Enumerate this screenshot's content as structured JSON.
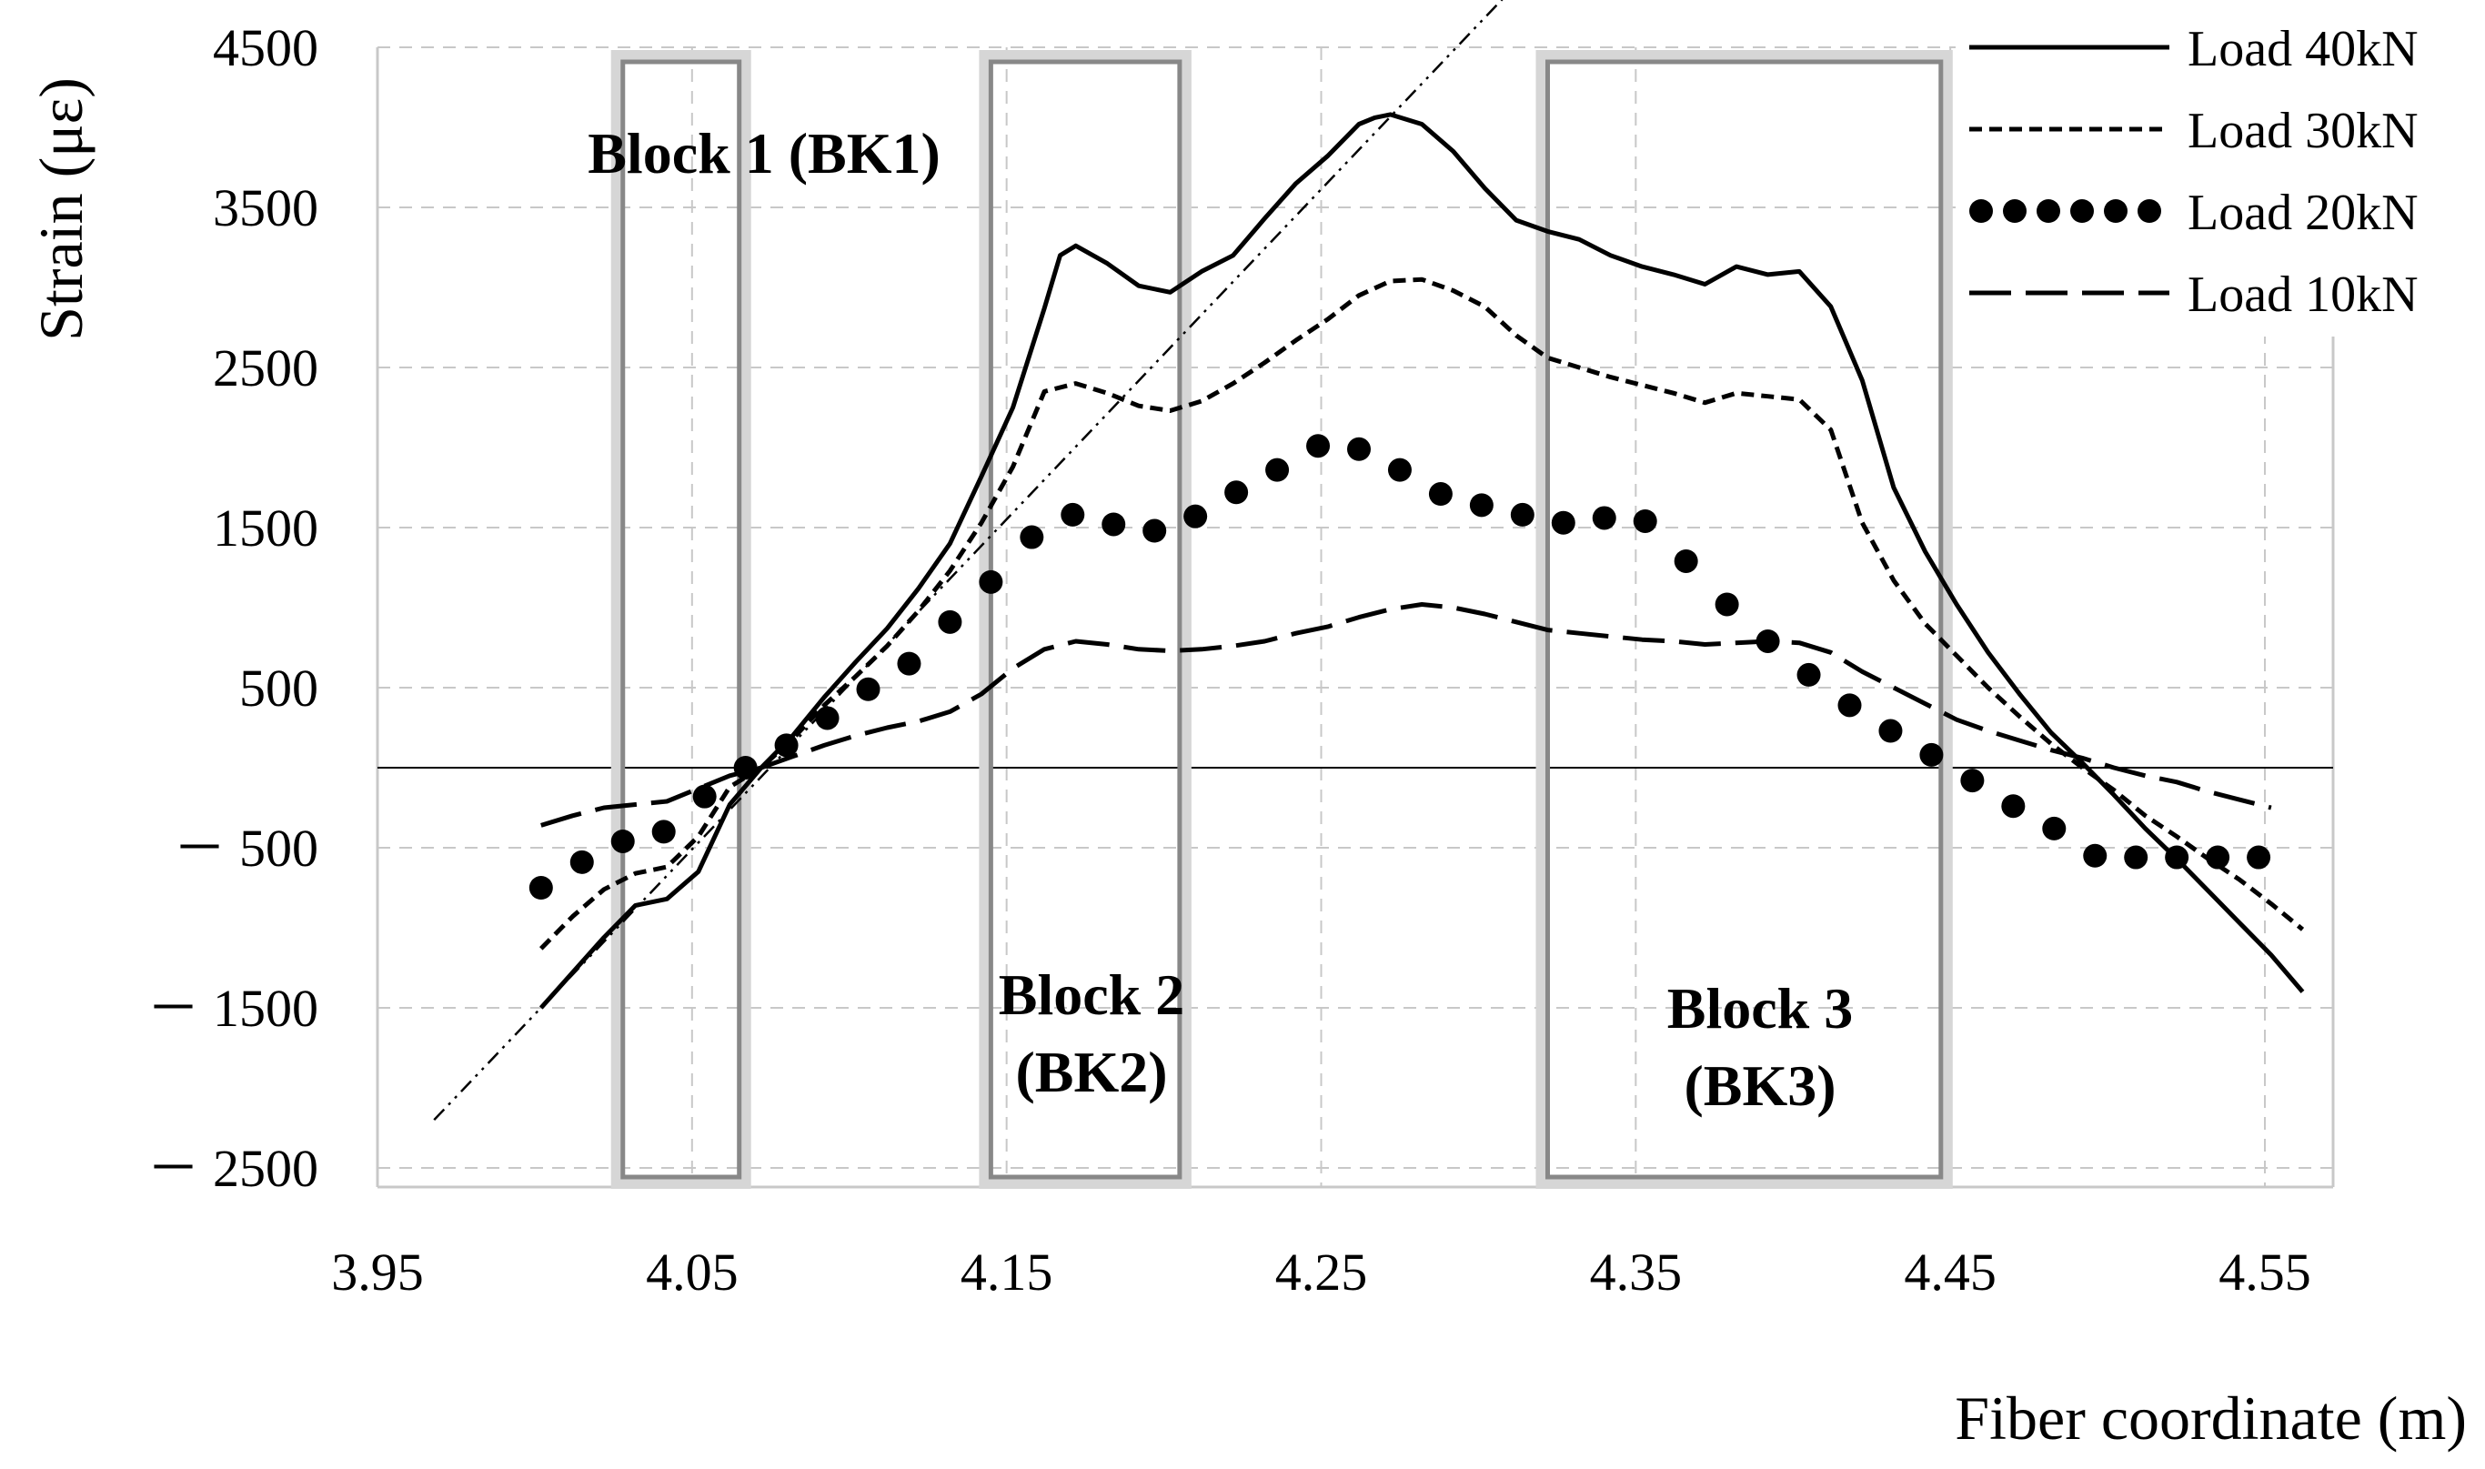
{
  "chart_data": {
    "type": "line",
    "title": "",
    "xlabel": "Fiber coordinate (m)",
    "ylabel": "Strain (με)",
    "xlim": [
      3.95,
      4.57
    ],
    "ylim": [
      -2600,
      4500
    ],
    "x_ticks": [
      "3.95",
      "4.05",
      "4.15",
      "4.25",
      "4.35",
      "4.45",
      "4.55"
    ],
    "x_tick_values": [
      3.95,
      4.05,
      4.15,
      4.25,
      4.35,
      4.45,
      4.55
    ],
    "y_ticks": [
      "4500",
      "3500",
      "2500",
      "1500",
      "500",
      "－ 500",
      "－ 1500",
      "－ 2500"
    ],
    "y_tick_values": [
      4500,
      3500,
      2500,
      1500,
      500,
      -500,
      -1500,
      -2500
    ],
    "grid": true,
    "legend_position": "top-right",
    "colors": {
      "lines": "#000000",
      "grid": "#c8c8c8",
      "axis": "#c8c8c8",
      "block_frame": "#888888"
    },
    "blocks": [
      {
        "label_lines": [
          "Block 1 (BK1)"
        ],
        "x_start": 4.028,
        "x_end": 4.065
      },
      {
        "label_lines": [
          "Block 2",
          "(BK2)"
        ],
        "x_start": 4.145,
        "x_end": 4.205
      },
      {
        "label_lines": [
          "Block 3",
          "(BK3)"
        ],
        "x_start": 4.322,
        "x_end": 4.447
      }
    ],
    "trend_line": {
      "style": "dash-dot",
      "points": [
        [
          3.968,
          -2200
        ],
        [
          4.31,
          4850
        ]
      ]
    },
    "series": [
      {
        "name": "Load 40kN",
        "style": "solid",
        "x": [
          4.002,
          4.012,
          4.022,
          4.032,
          4.042,
          4.052,
          4.062,
          4.072,
          4.082,
          4.092,
          4.102,
          4.112,
          4.122,
          4.132,
          4.142,
          4.152,
          4.162,
          4.167,
          4.172,
          4.182,
          4.192,
          4.202,
          4.212,
          4.222,
          4.232,
          4.242,
          4.252,
          4.262,
          4.267,
          4.272,
          4.282,
          4.292,
          4.302,
          4.312,
          4.322,
          4.332,
          4.342,
          4.352,
          4.362,
          4.372,
          4.382,
          4.392,
          4.402,
          4.412,
          4.422,
          4.432,
          4.442,
          4.452,
          4.462,
          4.472,
          4.482,
          4.492,
          4.502,
          4.512,
          4.522,
          4.532,
          4.542,
          4.552,
          4.562
        ],
        "y": [
          -1500,
          -1280,
          -1060,
          -860,
          -820,
          -650,
          -230,
          0,
          200,
          440,
          660,
          870,
          1120,
          1400,
          1820,
          2250,
          2870,
          3200,
          3260,
          3150,
          3010,
          2970,
          3100,
          3200,
          3430,
          3650,
          3820,
          4020,
          4060,
          4080,
          4020,
          3850,
          3620,
          3420,
          3350,
          3300,
          3200,
          3130,
          3080,
          3020,
          3130,
          3080,
          3100,
          2880,
          2420,
          1750,
          1350,
          1020,
          720,
          460,
          220,
          30,
          -170,
          -380,
          -570,
          -770,
          -970,
          -1170,
          -1400
        ]
      },
      {
        "name": "Load 30kN",
        "style": "short-dash",
        "x": [
          4.002,
          4.012,
          4.022,
          4.032,
          4.042,
          4.052,
          4.062,
          4.072,
          4.082,
          4.092,
          4.102,
          4.112,
          4.122,
          4.132,
          4.142,
          4.152,
          4.162,
          4.172,
          4.182,
          4.192,
          4.202,
          4.212,
          4.222,
          4.232,
          4.242,
          4.252,
          4.262,
          4.272,
          4.282,
          4.292,
          4.302,
          4.312,
          4.322,
          4.332,
          4.342,
          4.352,
          4.362,
          4.372,
          4.382,
          4.392,
          4.402,
          4.412,
          4.422,
          4.432,
          4.442,
          4.452,
          4.462,
          4.472,
          4.482,
          4.492,
          4.502,
          4.512,
          4.522,
          4.532,
          4.542,
          4.552,
          4.562
        ],
        "y": [
          -1130,
          -930,
          -760,
          -660,
          -620,
          -430,
          -120,
          0,
          180,
          390,
          570,
          760,
          980,
          1230,
          1530,
          1880,
          2350,
          2400,
          2340,
          2260,
          2230,
          2290,
          2400,
          2530,
          2670,
          2800,
          2950,
          3040,
          3050,
          2980,
          2880,
          2700,
          2560,
          2500,
          2440,
          2390,
          2340,
          2280,
          2340,
          2320,
          2300,
          2110,
          1530,
          1170,
          900,
          700,
          500,
          320,
          150,
          0,
          -140,
          -300,
          -430,
          -570,
          -700,
          -850,
          -1010
        ]
      },
      {
        "name": "Load 20kN",
        "style": "dots",
        "x": [
          4.002,
          4.015,
          4.028,
          4.041,
          4.054,
          4.067,
          4.08,
          4.093,
          4.106,
          4.119,
          4.132,
          4.145,
          4.158,
          4.171,
          4.184,
          4.197,
          4.21,
          4.223,
          4.236,
          4.249,
          4.262,
          4.275,
          4.288,
          4.301,
          4.314,
          4.327,
          4.34,
          4.353,
          4.366,
          4.379,
          4.392,
          4.405,
          4.418,
          4.431,
          4.444,
          4.457,
          4.47,
          4.483,
          4.496,
          4.509,
          4.522,
          4.535,
          4.548
        ],
        "y": [
          -750,
          -590,
          -460,
          -400,
          -180,
          0,
          140,
          310,
          490,
          650,
          910,
          1160,
          1440,
          1580,
          1520,
          1480,
          1570,
          1720,
          1860,
          2010,
          1990,
          1860,
          1710,
          1640,
          1580,
          1530,
          1560,
          1540,
          1290,
          1020,
          790,
          580,
          390,
          230,
          80,
          -80,
          -240,
          -380,
          -550,
          -560,
          -560,
          -560,
          -560
        ]
      },
      {
        "name": "Load 10kN",
        "style": "long-dash",
        "x": [
          4.002,
          4.012,
          4.022,
          4.032,
          4.042,
          4.052,
          4.062,
          4.072,
          4.082,
          4.092,
          4.102,
          4.112,
          4.122,
          4.132,
          4.142,
          4.152,
          4.162,
          4.172,
          4.182,
          4.192,
          4.202,
          4.212,
          4.222,
          4.232,
          4.242,
          4.252,
          4.262,
          4.272,
          4.282,
          4.292,
          4.302,
          4.312,
          4.322,
          4.332,
          4.342,
          4.352,
          4.362,
          4.372,
          4.382,
          4.392,
          4.402,
          4.412,
          4.422,
          4.432,
          4.442,
          4.452,
          4.462,
          4.472,
          4.482,
          4.492,
          4.502,
          4.512,
          4.522,
          4.532,
          4.542,
          4.552
        ],
        "y": [
          -360,
          -300,
          -250,
          -230,
          -210,
          -130,
          -50,
          0,
          70,
          140,
          200,
          250,
          290,
          350,
          460,
          620,
          740,
          790,
          770,
          740,
          730,
          740,
          760,
          790,
          840,
          880,
          940,
          990,
          1020,
          1000,
          960,
          910,
          860,
          840,
          820,
          800,
          790,
          770,
          780,
          790,
          780,
          720,
          600,
          500,
          400,
          300,
          230,
          170,
          110,
          60,
          0,
          -50,
          -90,
          -150,
          -200,
          -250
        ]
      }
    ]
  }
}
